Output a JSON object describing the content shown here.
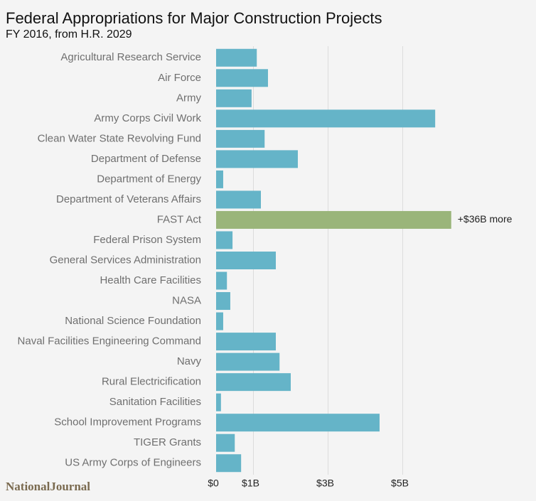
{
  "chart_data": {
    "type": "hbar",
    "title": "Federal Appropriations for Major Construction Projects",
    "subtitle": "FY 2016, from H.R. 2029",
    "source": "NationalJournal",
    "categories": [
      "Agricultural Research Service",
      "Air Force",
      "Army",
      "Army Corps Civil Work",
      "Clean Water State Revolving Fund",
      "Department of Defense",
      "Department of Energy",
      "Department of Veterans Affairs",
      "FAST Act",
      "Federal Prison System",
      "General Services Administration",
      "Health Care Facilities",
      "NASA",
      "National Science Foundation",
      "Naval Facilities Engineering Command",
      "Navy",
      "Rural Electricification",
      "Sanitation Facilities",
      "School Improvement Programs",
      "TIGER Grants",
      "US Army Corps of Engineers"
    ],
    "values": [
      1.09,
      1.39,
      0.95,
      5.87,
      1.3,
      2.19,
      0.19,
      1.2,
      6.3,
      0.44,
      1.6,
      0.29,
      0.38,
      0.19,
      1.6,
      1.7,
      2.0,
      0.13,
      4.38,
      0.5,
      0.67
    ],
    "colors": [
      "#65b4c8",
      "#65b4c8",
      "#65b4c8",
      "#65b4c8",
      "#65b4c8",
      "#65b4c8",
      "#65b4c8",
      "#65b4c8",
      "#9ab57a",
      "#65b4c8",
      "#65b4c8",
      "#65b4c8",
      "#65b4c8",
      "#65b4c8",
      "#65b4c8",
      "#65b4c8",
      "#65b4c8",
      "#65b4c8",
      "#65b4c8",
      "#65b4c8",
      "#65b4c8"
    ],
    "annotation": {
      "category": "FAST Act",
      "text": "+$36B more"
    },
    "xlim": [
      0,
      6.4
    ],
    "xticks": [
      {
        "value": 0,
        "label": "$0"
      },
      {
        "value": 1,
        "label": "$1B"
      },
      {
        "value": 3,
        "label": "$3B"
      },
      {
        "value": 5,
        "label": "$5B"
      }
    ],
    "grid": true
  }
}
